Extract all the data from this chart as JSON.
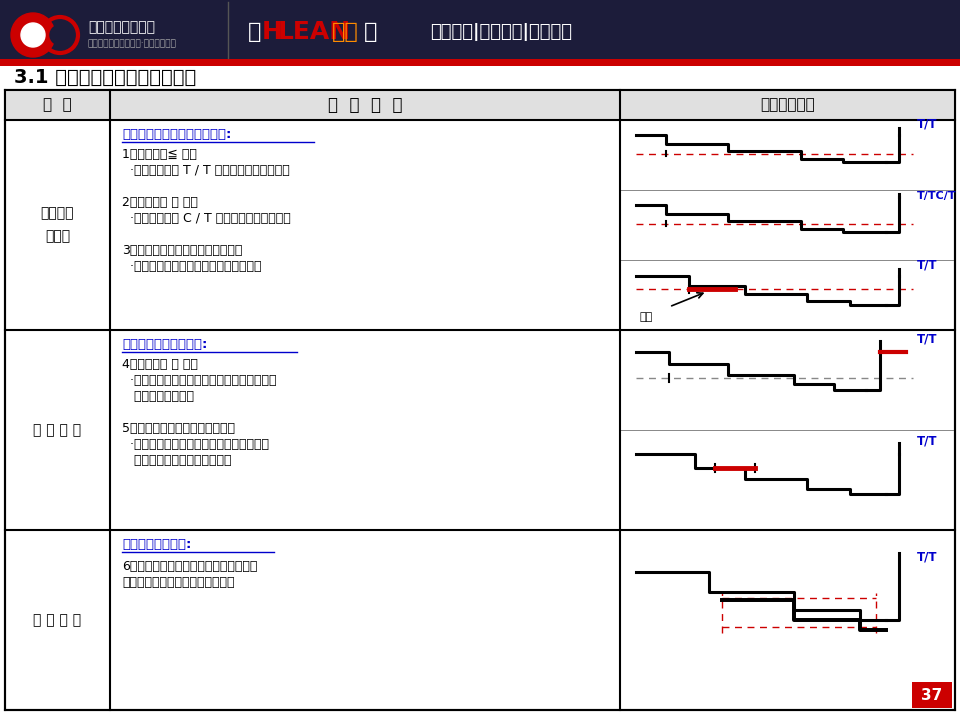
{
  "title_section": "3.1 标准作业组合表的图示方法",
  "header_col1": "项  目",
  "header_col2": "图  示  解  说",
  "header_col3": "图示记录例子",
  "row1_label": "推送的折\n回方法",
  "row2_label": "手 边 等 待",
  "row3_label": "同 时 起 动",
  "row1_subtitle": "自动推送时间的折回方法如下:",
  "row1_text1": "1．实际时间≦ 工数",
  "row1_text2": "  ·推送时间是从 T / T 线开始折回到开始点。",
  "row1_text3": "2．时间时间 ＞ 工数",
  "row1_text4": "  ·推送时间是从 C / T 线开始折回到开始点。",
  "row1_text5": "3．与折回时的手工作业时间重合时",
  "row1_text6": "  ·这样的组合是不成立的，应重选作业。",
  "row2_subtitle": "手边上等待的时间如下:",
  "row2_text1": "4．实际时间 ＜ 工数",
  "row2_text2": "  ·较少作业量时，由于要折回到起始点，因此",
  "row2_text3": "   产生了手边等待。",
  "row2_text4": "5．根据作业标准而产生手边等待",
  "row2_text5": "  ·工程图中，手工作业与自动推动的线相互",
  "row2_text6": "   重叠时，产生手边上的等待。",
  "row3_subtitle": "同时起动表示如下:",
  "row3_text1": "6．两台以上的机械按一个键同时起动。",
  "row3_text2": "　〔按下开关键时同时画上虚线〕",
  "bg_color": "#FFFFFF",
  "header_bg": "#E0E0E0",
  "border_color": "#000000",
  "red_color": "#CC0000",
  "blue_color": "#0000CC",
  "green_color": "#008000",
  "top_bar_bg": "#1C1C3A",
  "white": "#FFFFFF",
  "gray": "#888888",
  "light_gray": "#AAAAAA",
  "dark_red": "#CC0000"
}
